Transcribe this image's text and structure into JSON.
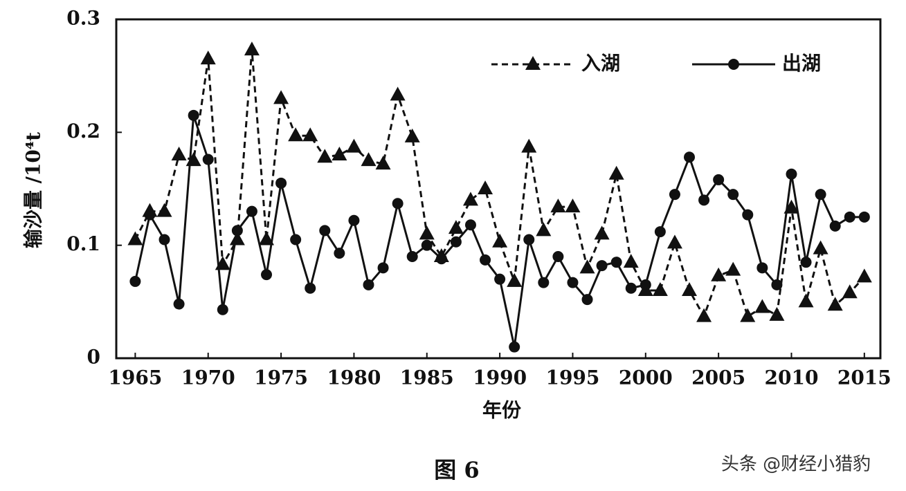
{
  "chart_data": {
    "type": "line",
    "x": [
      1965,
      1966,
      1967,
      1968,
      1969,
      1970,
      1971,
      1972,
      1973,
      1974,
      1975,
      1976,
      1977,
      1978,
      1979,
      1980,
      1981,
      1982,
      1983,
      1984,
      1985,
      1986,
      1987,
      1988,
      1989,
      1990,
      1991,
      1992,
      1993,
      1994,
      1995,
      1996,
      1997,
      1998,
      1999,
      2000,
      2001,
      2002,
      2003,
      2004,
      2005,
      2006,
      2007,
      2008,
      2009,
      2010,
      2011,
      2012,
      2013,
      2014,
      2015
    ],
    "series": [
      {
        "name": "入湖",
        "color": "#111111",
        "line_style": "dashed",
        "marker": "triangle",
        "values": [
          0.105,
          0.13,
          0.13,
          0.18,
          0.175,
          0.265,
          0.083,
          0.105,
          0.273,
          0.105,
          0.23,
          0.197,
          0.197,
          0.178,
          0.18,
          0.187,
          0.175,
          0.172,
          0.233,
          0.196,
          0.11,
          0.09,
          0.115,
          0.14,
          0.15,
          0.103,
          0.068,
          0.187,
          0.113,
          0.134,
          0.134,
          0.08,
          0.11,
          0.163,
          0.085,
          0.06,
          0.06,
          0.102,
          0.06,
          0.037,
          0.073,
          0.078,
          0.037,
          0.045,
          0.038,
          0.133,
          0.05,
          0.097,
          0.047,
          0.058,
          0.072
        ]
      },
      {
        "name": "出湖",
        "color": "#111111",
        "line_style": "solid",
        "marker": "circle",
        "values": [
          0.068,
          0.127,
          0.105,
          0.048,
          0.215,
          0.176,
          0.043,
          0.113,
          0.13,
          0.074,
          0.155,
          0.105,
          0.062,
          0.113,
          0.093,
          0.122,
          0.065,
          0.08,
          0.137,
          0.09,
          0.1,
          0.088,
          0.103,
          0.118,
          0.087,
          0.07,
          0.01,
          0.105,
          0.067,
          0.09,
          0.067,
          0.052,
          0.082,
          0.085,
          0.062,
          0.065,
          0.112,
          0.145,
          0.178,
          0.14,
          0.158,
          0.145,
          0.127,
          0.08,
          0.065,
          0.163,
          0.085,
          0.145,
          0.117,
          0.125,
          0.125
        ]
      }
    ],
    "xlim": [
      1963.7,
      2016.1
    ],
    "xticks": [
      1965,
      1970,
      1975,
      1980,
      1985,
      1990,
      1995,
      2000,
      2005,
      2010,
      2015
    ],
    "ylim": [
      0,
      0.3
    ],
    "yticks": [
      0,
      0.1,
      0.2,
      0.3
    ],
    "x_label": "年份",
    "y_label": "输沙量 /10⁴t",
    "caption": "图 6",
    "watermark": "头条 @财经小猎豹",
    "legend": "top-right"
  }
}
